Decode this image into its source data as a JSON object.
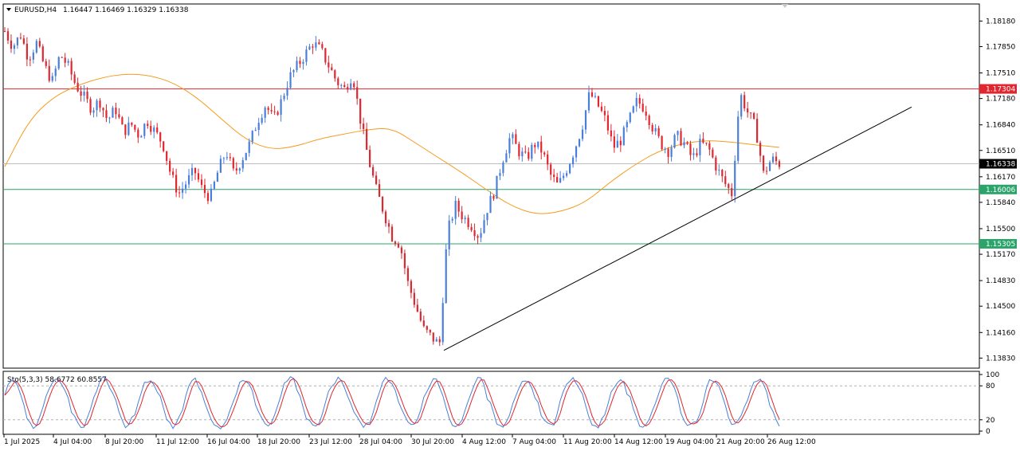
{
  "header": {
    "symbol_tf": "EURUSD,H4",
    "ohlc": "1.16447 1.16469 1.16329 1.16338"
  },
  "stochastic": {
    "label": "Sto(5,3,3) 58.6772 60.8557",
    "levels": [
      20,
      80
    ],
    "scale_labels": [
      "100",
      "80",
      "20",
      "0"
    ],
    "main_color": "#4a7fd8",
    "signal_color": "#e0262e"
  },
  "colors": {
    "bull": "#4a7fd8",
    "bear": "#e0262e",
    "ma": "#f59b1f",
    "resistance": "#e0262e",
    "support": "#2ba36a",
    "trendline": "#000000",
    "current_price": "#bfbfbf"
  },
  "chart_data": {
    "type": "candlestick",
    "symbol": "EURUSD",
    "timeframe": "H4",
    "ylim": [
      1.137,
      1.184
    ],
    "y_ticks": [
      "1.18180",
      "1.17850",
      "1.17510",
      "1.17180",
      "1.16840",
      "1.16510",
      "1.16170",
      "1.15840",
      "1.15500",
      "1.15170",
      "1.14830",
      "1.14500",
      "1.14160",
      "1.13830"
    ],
    "x_ticks": [
      "1 Jul 2025",
      "4 Jul 04:00",
      "8 Jul 20:00",
      "11 Jul 12:00",
      "16 Jul 04:00",
      "18 Jul 20:00",
      "23 Jul 12:00",
      "28 Jul 04:00",
      "30 Jul 20:00",
      "4 Aug 12:00",
      "7 Aug 04:00",
      "11 Aug 20:00",
      "14 Aug 12:00",
      "19 Aug 04:00",
      "21 Aug 20:00",
      "26 Aug 12:00"
    ],
    "horizontal_levels": [
      {
        "label": "1.17304",
        "value": 1.17304,
        "role": "resistance"
      },
      {
        "label": "1.16006",
        "value": 1.16006,
        "role": "support"
      },
      {
        "label": "1.15305",
        "value": 1.15305,
        "role": "support"
      }
    ],
    "current_price": {
      "label": "1.16338",
      "value": 1.16338
    },
    "trendline": {
      "from_price": 1.1393,
      "to_price": 1.1707
    },
    "price_path": [
      1.1805,
      1.1785,
      1.18,
      1.177,
      1.179,
      1.176,
      1.174,
      1.1775,
      1.176,
      1.1735,
      1.172,
      1.1705,
      1.1715,
      1.169,
      1.1705,
      1.1675,
      1.1685,
      1.167,
      1.169,
      1.1675,
      1.166,
      1.162,
      1.1595,
      1.161,
      1.1625,
      1.16,
      1.159,
      1.1625,
      1.165,
      1.162,
      1.164,
      1.166,
      1.169,
      1.171,
      1.169,
      1.1715,
      1.1745,
      1.176,
      1.1775,
      1.179,
      1.178,
      1.176,
      1.174,
      1.173,
      1.175,
      1.169,
      1.164,
      1.16,
      1.157,
      1.154,
      1.153,
      1.148,
      1.145,
      1.142,
      1.141,
      1.14,
      1.1545,
      1.158,
      1.1565,
      1.1555,
      1.154,
      1.1575,
      1.16,
      1.164,
      1.167,
      1.165,
      1.164,
      1.166,
      1.165,
      1.162,
      1.1605,
      1.1625,
      1.165,
      1.168,
      1.1725,
      1.171,
      1.169,
      1.1655,
      1.1665,
      1.169,
      1.1715,
      1.1705,
      1.168,
      1.166,
      1.165,
      1.167,
      1.166,
      1.164,
      1.166,
      1.1655,
      1.163,
      1.161,
      1.1595,
      1.1725,
      1.17,
      1.168,
      1.162,
      1.164,
      1.1634
    ],
    "ma_path": [
      1.163,
      1.169,
      1.172,
      1.1735,
      1.1745,
      1.175,
      1.1748,
      1.1738,
      1.1718,
      1.169,
      1.1664,
      1.1652,
      1.1656,
      1.1666,
      1.1672,
      1.1678,
      1.168,
      1.166,
      1.164,
      1.162,
      1.1598,
      1.1578,
      1.1568,
      1.1572,
      1.1584,
      1.161,
      1.1632,
      1.165,
      1.166,
      1.1664,
      1.1662,
      1.1658,
      1.1655
    ]
  }
}
